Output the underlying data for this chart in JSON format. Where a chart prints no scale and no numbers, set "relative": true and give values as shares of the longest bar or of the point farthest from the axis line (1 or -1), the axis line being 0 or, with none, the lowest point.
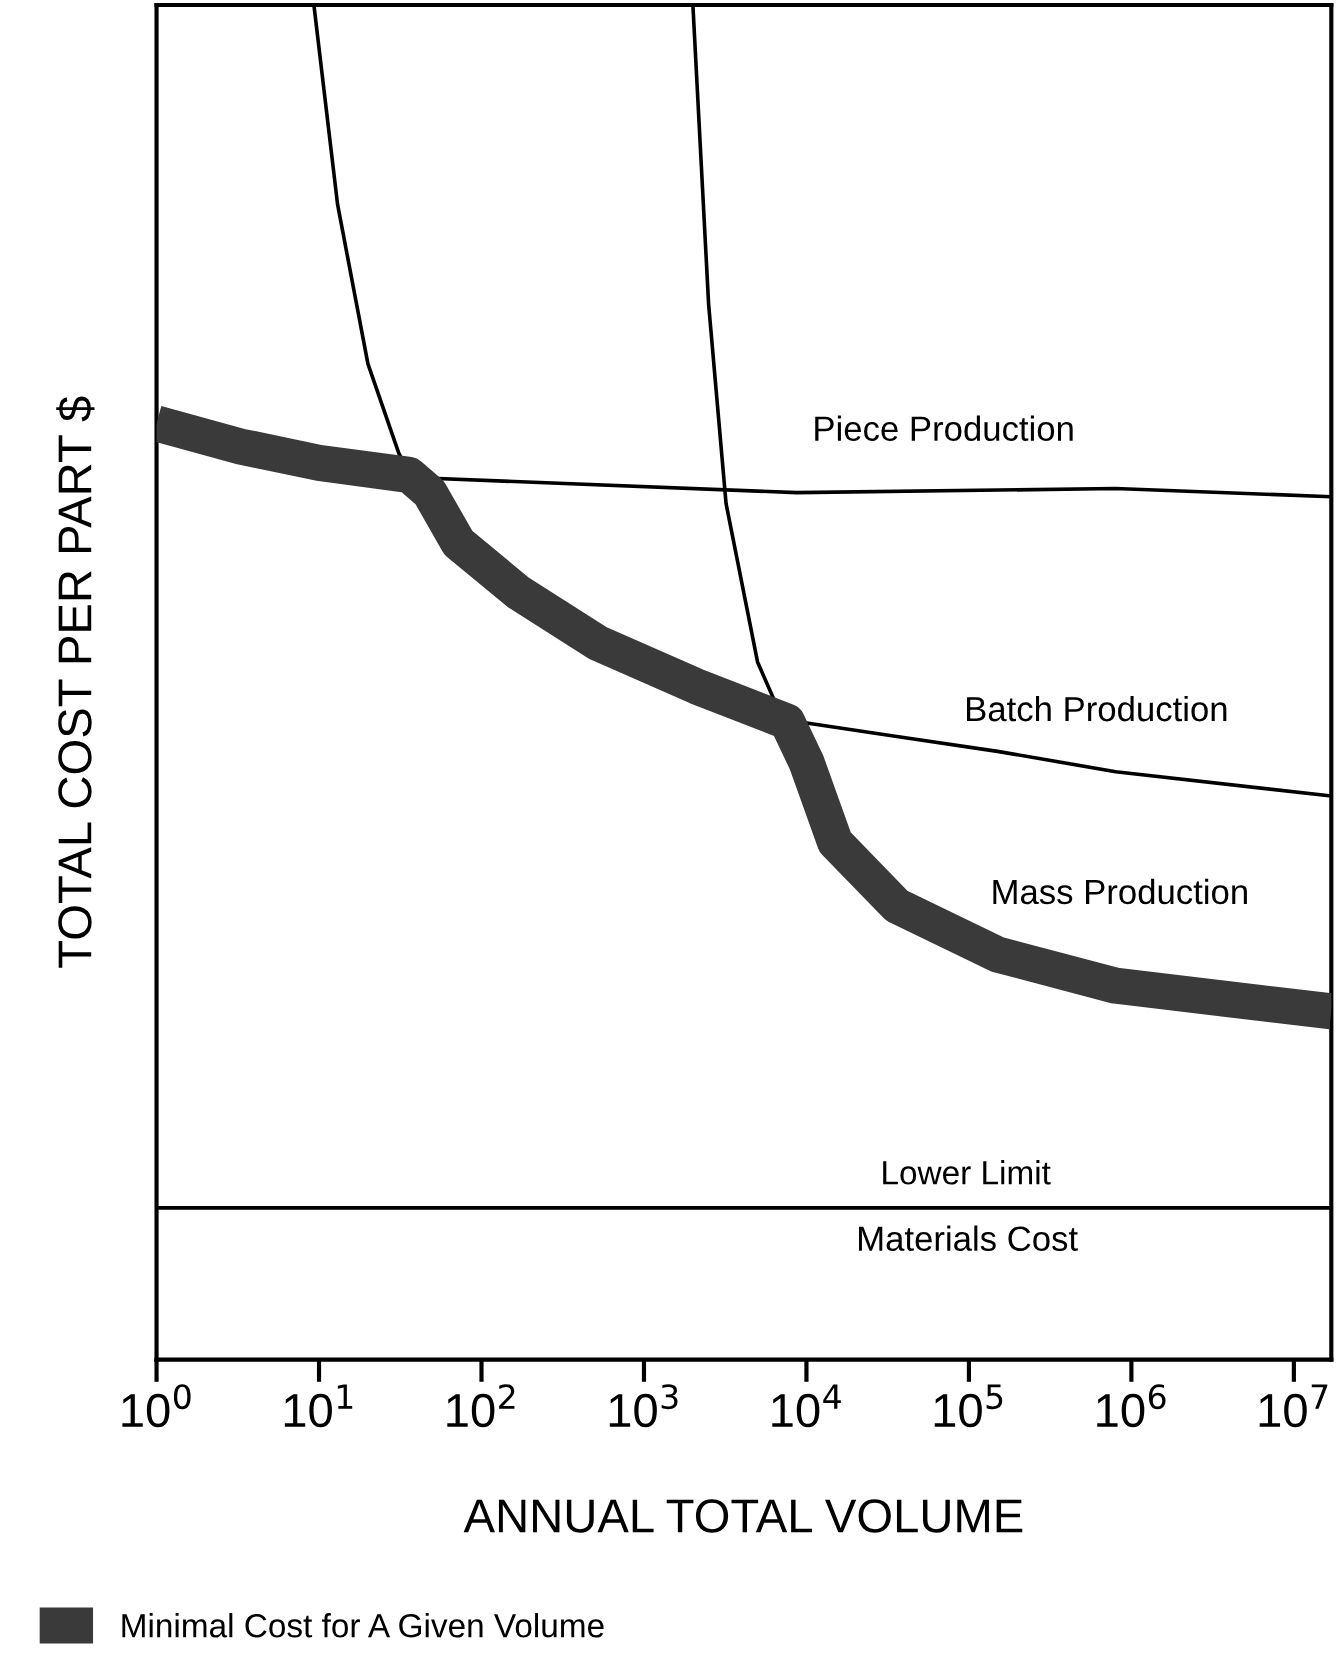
{
  "chart_data": {
    "type": "line",
    "relative": true,
    "log": "x",
    "xlabel": "ANNUAL TOTAL VOLUME",
    "ylabel": "TOTAL COST PER PART $",
    "tick_labels": "x",
    "grid": false,
    "legend": "bottom left",
    "marker": "none",
    "line_style": "solid",
    "xlim": [
      1,
      17000000
    ],
    "xticks": [
      {
        "value": 1,
        "label": "10$^{0}$"
      },
      {
        "value": 10,
        "label": "10$^{1}$"
      },
      {
        "value": 100,
        "label": "10$^{2}$"
      },
      {
        "value": 1000,
        "label": "10$^{3}$"
      },
      {
        "value": 10000,
        "label": "10$^{4}$"
      },
      {
        "value": 100000,
        "label": "10$^{5}$"
      },
      {
        "value": 1000000,
        "label": "10$^{6}$"
      },
      {
        "value": 10000000,
        "label": "10$^{7}$"
      }
    ],
    "series": [
      {
        "name": "Minimal Cost for A Given Volume",
        "color": "#3a3a3a",
        "x": [
          1,
          3.3,
          10,
          36,
          48,
          72,
          170,
          520,
          2100,
          7600,
          10000,
          15000,
          36000,
          150000,
          800000,
          17000000
        ],
        "values": [
          0.691,
          0.674,
          0.662,
          0.653,
          0.64,
          0.603,
          0.566,
          0.529,
          0.497,
          0.471,
          0.441,
          0.382,
          0.335,
          0.299,
          0.276,
          0.257
        ]
      },
      {
        "color": "#000000",
        "x": [
          1,
          41,
          8700,
          800000,
          17000000
        ],
        "values": [
          0.691,
          0.651,
          0.64,
          0.643,
          0.637
        ]
      },
      {
        "color": "#000000",
        "x": [
          9.3,
          13,
          20,
          31,
          55,
          170,
          520,
          2100,
          8700,
          36000,
          150000,
          800000,
          17000000
        ],
        "values": [
          1,
          0.853,
          0.735,
          0.669,
          0.61,
          0.559,
          0.522,
          0.493,
          0.471,
          0.46,
          0.449,
          0.434,
          0.416
        ]
      },
      {
        "color": "#000000",
        "x": [
          2000,
          2500,
          3200,
          5000,
          8700,
          15000,
          36000,
          150000,
          800000,
          17000000
        ],
        "values": [
          1,
          0.779,
          0.632,
          0.515,
          0.449,
          0.382,
          0.331,
          0.294,
          0.272,
          0.257
        ]
      }
    ],
    "ref_lines": [
      {
        "axis": "y",
        "value": 0.112,
        "label": "Lower Limit",
        "color": "#000000"
      }
    ],
    "annotations": [
      "Piece Production",
      "Batch Production",
      "Mass Production",
      "Materials Cost"
    ]
  }
}
